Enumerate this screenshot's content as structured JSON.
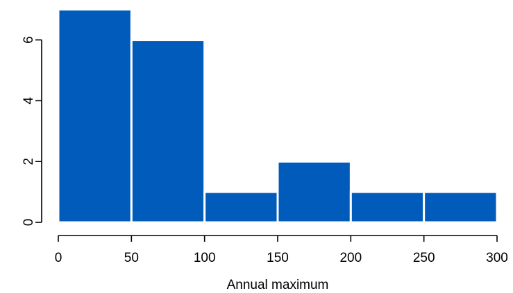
{
  "chart_data": {
    "type": "bar",
    "title": "",
    "xlabel": "Annual maximum",
    "ylabel": "",
    "bins": [
      {
        "x0": 0,
        "x1": 50,
        "count": 7
      },
      {
        "x0": 50,
        "x1": 100,
        "count": 6
      },
      {
        "x0": 100,
        "x1": 150,
        "count": 1
      },
      {
        "x0": 150,
        "x1": 200,
        "count": 2
      },
      {
        "x0": 200,
        "x1": 250,
        "count": 1
      },
      {
        "x0": 250,
        "x1": 300,
        "count": 1
      }
    ],
    "xlim": [
      0,
      300
    ],
    "ylim": [
      0,
      7
    ],
    "x_ticks": [
      0,
      50,
      100,
      150,
      200,
      250,
      300
    ],
    "y_ticks": [
      0,
      2,
      4,
      6
    ],
    "bar_color": "#005BBB",
    "grid": false,
    "legend": false
  }
}
